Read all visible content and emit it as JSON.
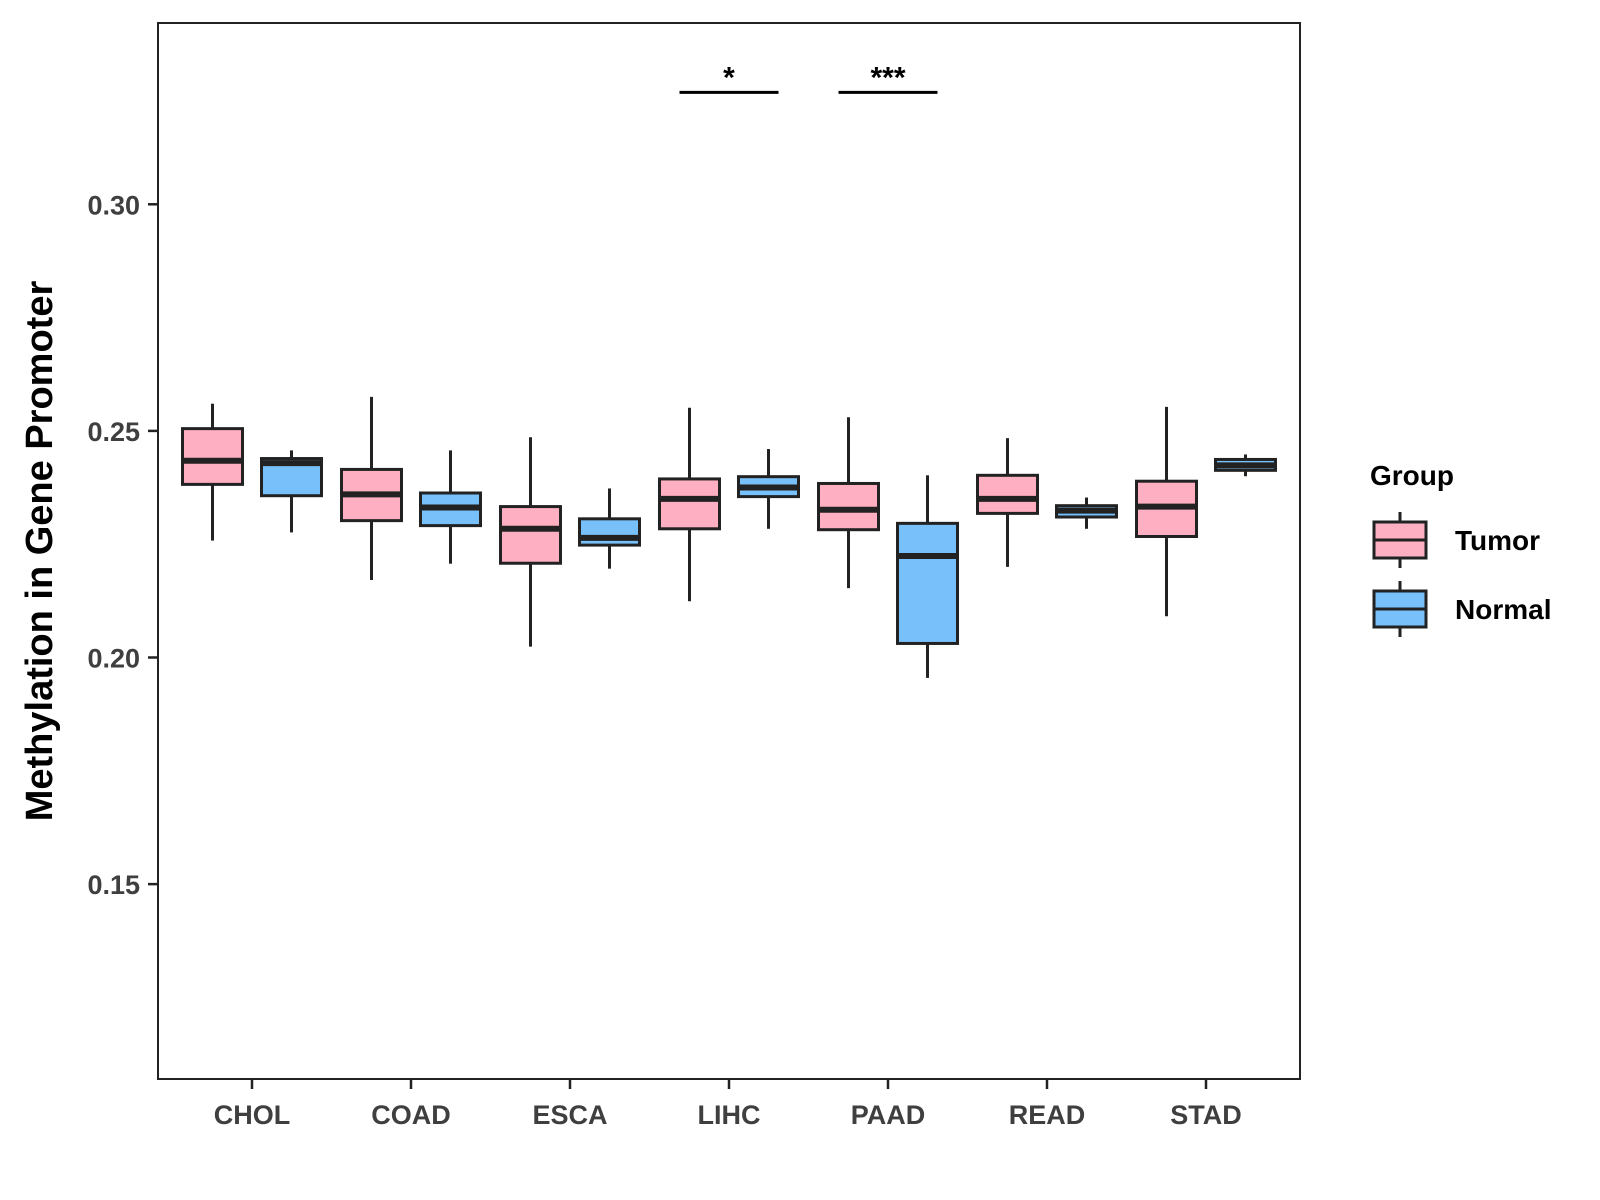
{
  "chart_data": {
    "type": "boxplot",
    "title": "",
    "xlabel": "",
    "ylabel": "Methylation in Gene Promoter",
    "ylim": [
      0.107,
      0.34
    ],
    "yticks": [
      0.15,
      0.2,
      0.25,
      0.3
    ],
    "ytick_labels": [
      "0.15",
      "0.20",
      "0.25",
      "0.30"
    ],
    "categories": [
      "CHOL",
      "COAD",
      "ESCA",
      "LIHC",
      "PAAD",
      "READ",
      "STAD"
    ],
    "legend": {
      "title": "Group",
      "position": "right",
      "entries": [
        {
          "name": "Tumor",
          "color": "#ffafc2"
        },
        {
          "name": "Normal",
          "color": "#77c0fa"
        }
      ]
    },
    "series": [
      {
        "name": "Tumor",
        "color": "#ffafc2",
        "boxes": [
          {
            "category": "CHOL",
            "min": 0.2258,
            "q1": 0.2382,
            "median": 0.2434,
            "q3": 0.2505,
            "max": 0.256
          },
          {
            "category": "COAD",
            "min": 0.2171,
            "q1": 0.2302,
            "median": 0.236,
            "q3": 0.2415,
            "max": 0.2575
          },
          {
            "category": "ESCA",
            "min": 0.2024,
            "q1": 0.2208,
            "median": 0.2284,
            "q3": 0.2333,
            "max": 0.2486
          },
          {
            "category": "LIHC",
            "min": 0.2124,
            "q1": 0.2284,
            "median": 0.235,
            "q3": 0.2394,
            "max": 0.2551
          },
          {
            "category": "PAAD",
            "min": 0.2153,
            "q1": 0.2282,
            "median": 0.2326,
            "q3": 0.2384,
            "max": 0.253
          },
          {
            "category": "READ",
            "min": 0.22,
            "q1": 0.2318,
            "median": 0.235,
            "q3": 0.2402,
            "max": 0.2484
          },
          {
            "category": "STAD",
            "min": 0.2091,
            "q1": 0.2267,
            "median": 0.2333,
            "q3": 0.2389,
            "max": 0.2553
          }
        ]
      },
      {
        "name": "Normal",
        "color": "#77c0fa",
        "boxes": [
          {
            "category": "CHOL",
            "min": 0.2276,
            "q1": 0.2357,
            "median": 0.2429,
            "q3": 0.2439,
            "max": 0.2457
          },
          {
            "category": "COAD",
            "min": 0.2207,
            "q1": 0.2291,
            "median": 0.2331,
            "q3": 0.2363,
            "max": 0.2457
          },
          {
            "category": "ESCA",
            "min": 0.2196,
            "q1": 0.2248,
            "median": 0.2264,
            "q3": 0.2306,
            "max": 0.2373
          },
          {
            "category": "LIHC",
            "min": 0.2284,
            "q1": 0.2355,
            "median": 0.2375,
            "q3": 0.2399,
            "max": 0.246
          },
          {
            "category": "PAAD",
            "min": 0.1955,
            "q1": 0.2031,
            "median": 0.2224,
            "q3": 0.2296,
            "max": 0.2402
          },
          {
            "category": "READ",
            "min": 0.2284,
            "q1": 0.231,
            "median": 0.2324,
            "q3": 0.2335,
            "max": 0.2353
          },
          {
            "category": "STAD",
            "min": 0.24,
            "q1": 0.2413,
            "median": 0.2424,
            "q3": 0.2437,
            "max": 0.2448
          }
        ]
      }
    ],
    "significance": [
      {
        "category": "LIHC",
        "label": "*",
        "y": 0.3247
      },
      {
        "category": "PAAD",
        "label": "***",
        "y": 0.3247
      }
    ]
  }
}
